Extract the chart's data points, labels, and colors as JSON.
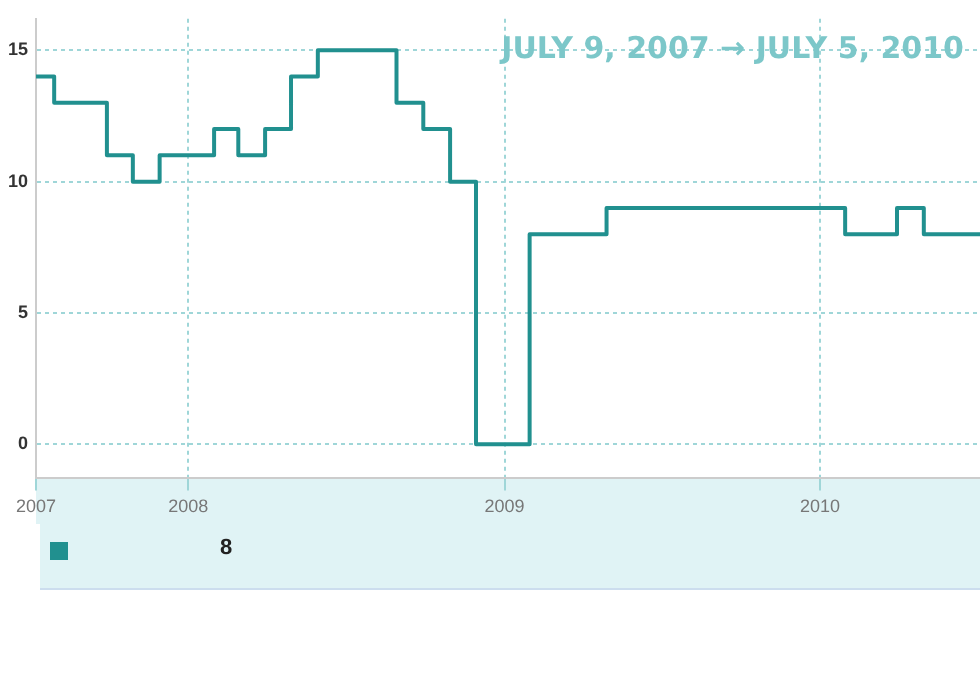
{
  "chart_data": {
    "type": "step",
    "title": "JULY 9, 2007 → JULY 5, 2010",
    "x": [
      "2007-07-09",
      "2007-07-30",
      "2007-09-29",
      "2007-10-29",
      "2007-11-29",
      "2008-01-31",
      "2008-02-28",
      "2008-03-30",
      "2008-04-29",
      "2008-05-30",
      "2008-08-29",
      "2008-09-29",
      "2008-10-30",
      "2008-11-29",
      "2009-01-30",
      "2009-04-29",
      "2010-01-30",
      "2010-03-31",
      "2010-05-01",
      "2010-07-05"
    ],
    "series": [
      {
        "color": "#21908f",
        "values": [
          14,
          13,
          11,
          10,
          11,
          12,
          11,
          12,
          14,
          15,
          13,
          12,
          10,
          0,
          8,
          9,
          8,
          9,
          8,
          8
        ]
      }
    ],
    "xlim": [
      "2007-07-09",
      "2010-07-05"
    ],
    "xticks": [
      {
        "value": "2007-07-09",
        "label": "2007"
      },
      {
        "value": "2008-01-01",
        "label": "2008"
      },
      {
        "value": "2009-01-01",
        "label": "2009"
      },
      {
        "value": "2010-01-01",
        "label": "2010"
      }
    ],
    "ylim": [
      -1.3,
      16.2
    ],
    "yticks": [
      0,
      5,
      10,
      15
    ],
    "grid": true,
    "marker": "none",
    "line_style": "solid",
    "annotations": [
      "8"
    ]
  }
}
